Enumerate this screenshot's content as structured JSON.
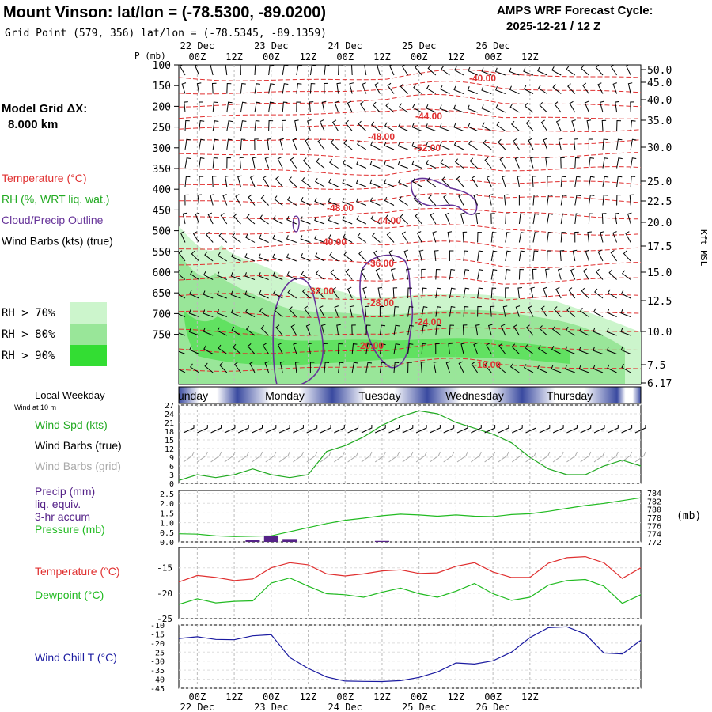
{
  "header": {
    "title": "Mount Vinson:  lat/lon = (-78.5300, -89.0200)",
    "grid_point": "Grid Point (579, 356) lat/lon = (-78.5345, -89.1359)",
    "cycle_label": "AMPS WRF Forecast Cycle:",
    "cycle_value": "2025-12-21 / 12  Z"
  },
  "time_axis": {
    "hour_labels": [
      "00Z",
      "12Z",
      "00Z",
      "12Z",
      "00Z",
      "12Z",
      "00Z",
      "12Z",
      "00Z",
      "12Z"
    ],
    "day_labels": [
      "22 Dec",
      "23 Dec",
      "24 Dec",
      "25 Dec",
      "26 Dec"
    ],
    "weekdays": [
      "unday",
      "Monday",
      "Tuesday",
      "Wednesday",
      "Thursday"
    ]
  },
  "left_panel": {
    "model_grid_label": "Model Grid ΔX:",
    "model_grid_value": "8.000 km",
    "legend": [
      {
        "text": "Temperature (°C)",
        "color": "#e03030"
      },
      {
        "text": "RH (%, WRT liq. wat.)",
        "color": "#22aa22"
      },
      {
        "text": "Cloud/Precip Outline",
        "color": "#663399"
      },
      {
        "text": "Wind Barbs (kts) (true)",
        "color": "#000000"
      }
    ],
    "rh_thresholds": [
      {
        "text": "RH > 70%",
        "color": "#ccf5cc"
      },
      {
        "text": "RH > 80%",
        "color": "#99e699"
      },
      {
        "text": "RH > 90%",
        "color": "#33dd33"
      }
    ]
  },
  "colors": {
    "temperature": "#e03030",
    "dewpoint": "#22bb22",
    "rh": "#22aa22",
    "cloud": "#663399",
    "wind_chill": "#1a1aa0",
    "pressure": "#22bb22",
    "precip": "#552288",
    "weekday_bar": "#3a4aa0"
  },
  "chart_data": [
    {
      "type": "heatmap",
      "name": "cross-section",
      "ylabel": "P (mb)",
      "y_right_label": "Kft MSL",
      "pressure_ticks": [
        "100",
        "150",
        "200",
        "250",
        "300",
        "350",
        "400",
        "450",
        "500",
        "550",
        "600",
        "650",
        "700",
        "750"
      ],
      "height_ticks": [
        "50.0",
        "45.0",
        "40.0",
        "35.0",
        "30.0",
        "25.0",
        "22.5",
        "20.0",
        "17.5",
        "15.0",
        "12.5",
        "10.0",
        "7.5",
        "6.17"
      ],
      "temperature_labels": [
        "-40.00",
        "-44.00",
        "-48.00",
        "-52.00",
        "-48.00",
        "-44.00",
        "-40.00",
        "-36.00",
        "-32.00",
        "-28.00",
        "-24.00",
        "-20.00",
        "-16.00"
      ]
    },
    {
      "type": "line",
      "name": "surface-wind",
      "header": "Local Weekday",
      "subheader": "Wind at 10 m",
      "labels": [
        "Wind Spd (kts)",
        "Wind Barbs (true)",
        "Wind Barbs (grid)"
      ],
      "yticks": [
        "27",
        "24",
        "21",
        "18",
        "15",
        "12",
        "9",
        "6",
        "3",
        "0"
      ],
      "ylim": [
        0,
        27
      ],
      "x_hours": [
        0,
        6,
        12,
        18,
        24,
        30,
        36,
        42,
        48,
        54,
        60,
        66,
        72,
        78,
        84,
        90,
        96,
        102,
        108,
        114,
        120,
        126,
        132,
        138,
        144,
        150
      ],
      "wind_speed": [
        1,
        3,
        2,
        3,
        5,
        3,
        2,
        3,
        11,
        13,
        16,
        20,
        23,
        25,
        24,
        21,
        19,
        17,
        14,
        9,
        5,
        3,
        3,
        6,
        8,
        6
      ]
    },
    {
      "type": "line",
      "name": "precip-pressure",
      "labels": [
        "Precip (mm)",
        "liq. equiv.",
        "3-hr accum",
        "Pressure (mb)"
      ],
      "yticks_left": [
        "2.5",
        "2.0",
        "1.5",
        "1.0",
        "0.5",
        "0.0"
      ],
      "yticks_right": [
        "784",
        "782",
        "780",
        "778",
        "776",
        "774",
        "772"
      ],
      "right_unit": "(mb)",
      "ylim_left": [
        0,
        2.5
      ],
      "ylim_right": [
        772,
        784
      ],
      "x_hours": [
        0,
        6,
        12,
        18,
        24,
        30,
        36,
        42,
        48,
        54,
        60,
        66,
        72,
        78,
        84,
        90,
        96,
        102,
        108,
        114,
        120,
        126,
        132,
        138,
        144,
        150
      ],
      "pressure": [
        774,
        773.9,
        773.5,
        773.3,
        773.4,
        773.5,
        774.5,
        775.5,
        776.5,
        777.3,
        777.8,
        778.4,
        778.8,
        778.6,
        778.3,
        778.6,
        778.3,
        778.2,
        778.7,
        778.9,
        779.5,
        780.2,
        780.9,
        781.4,
        782.1,
        782.8
      ],
      "precip": [
        0,
        0,
        0,
        0,
        0.1,
        0.3,
        0.15,
        0,
        0,
        0,
        0,
        0.05,
        0,
        0,
        0,
        0,
        0,
        0,
        0,
        0,
        0,
        0,
        0,
        0,
        0,
        0
      ]
    },
    {
      "type": "line",
      "name": "temperature-dewpoint",
      "labels": [
        "Temperature (°C)",
        "Dewpoint (°C)"
      ],
      "yticks": [
        "-15",
        "-20",
        "-25"
      ],
      "ylim": [
        -25,
        -11
      ],
      "x_hours": [
        0,
        6,
        12,
        18,
        24,
        30,
        36,
        42,
        48,
        54,
        60,
        66,
        72,
        78,
        84,
        90,
        96,
        102,
        108,
        114,
        120,
        126,
        132,
        138,
        144,
        150
      ],
      "temperature": [
        -17.8,
        -16.5,
        -16.9,
        -17.5,
        -17.2,
        -15,
        -14,
        -14.4,
        -16.2,
        -16.6,
        -16.2,
        -15.6,
        -15.4,
        -16.1,
        -16,
        -14.7,
        -14,
        -15.8,
        -16.9,
        -16.9,
        -14.1,
        -13,
        -12.8,
        -14,
        -17.1,
        -15
      ],
      "dewpoint": [
        -22.2,
        -21.1,
        -21.9,
        -21.6,
        -21.5,
        -18,
        -17,
        -18.6,
        -20.1,
        -20.3,
        -20.8,
        -19.8,
        -19,
        -20.1,
        -20.8,
        -19.6,
        -18.1,
        -20.1,
        -21.4,
        -20.8,
        -18.4,
        -17.5,
        -17.3,
        -18.6,
        -22,
        -20.3
      ]
    },
    {
      "type": "line",
      "name": "wind-chill",
      "labels": [
        "Wind Chill T (°C)"
      ],
      "yticks": [
        "-10",
        "-15",
        "-20",
        "-25",
        "-30",
        "-35",
        "-40",
        "-45"
      ],
      "ylim": [
        -45,
        -10
      ],
      "x_hours": [
        0,
        6,
        12,
        18,
        24,
        30,
        36,
        42,
        48,
        54,
        60,
        66,
        72,
        78,
        84,
        90,
        96,
        102,
        108,
        114,
        120,
        126,
        132,
        138,
        144,
        150
      ],
      "wind_chill": [
        -17.5,
        -16.5,
        -18,
        -18.2,
        -16,
        -15.4,
        -28,
        -34,
        -38.8,
        -41,
        -41.2,
        -41.3,
        -40.8,
        -39,
        -36,
        -31,
        -31.6,
        -29.8,
        -25,
        -17,
        -11.5,
        -11,
        -15,
        -25.5,
        -26,
        -18.5
      ]
    }
  ]
}
